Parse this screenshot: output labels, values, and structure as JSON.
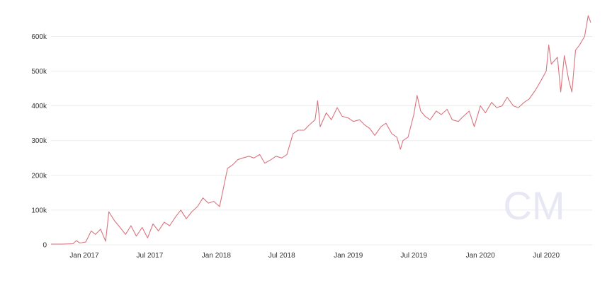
{
  "chart_data": {
    "type": "line",
    "title": "",
    "xlabel": "",
    "ylabel": "",
    "grid": true,
    "legend": "none",
    "xlim": [
      "2016-10-01",
      "2020-11-05"
    ],
    "ylim": [
      0,
      660000
    ],
    "y_ticks": [
      {
        "value": 0,
        "label": "0"
      },
      {
        "value": 100000,
        "label": "100k"
      },
      {
        "value": 200000,
        "label": "200k"
      },
      {
        "value": 300000,
        "label": "300k"
      },
      {
        "value": 400000,
        "label": "400k"
      },
      {
        "value": 500000,
        "label": "500k"
      },
      {
        "value": 600000,
        "label": "600k"
      }
    ],
    "x_ticks": [
      {
        "date": "2017-01-01",
        "label": "Jan 2017"
      },
      {
        "date": "2017-07-01",
        "label": "Jul 2017"
      },
      {
        "date": "2018-01-01",
        "label": "Jan 2018"
      },
      {
        "date": "2018-07-01",
        "label": "Jul 2018"
      },
      {
        "date": "2019-01-01",
        "label": "Jan 2019"
      },
      {
        "date": "2019-07-01",
        "label": "Jul 2019"
      },
      {
        "date": "2020-01-01",
        "label": "Jan 2020"
      },
      {
        "date": "2020-07-01",
        "label": "Jul 2020"
      }
    ],
    "series": [
      {
        "color": "#d9747e",
        "points": [
          [
            "2016-10-01",
            2000
          ],
          [
            "2016-11-01",
            2000
          ],
          [
            "2016-12-01",
            3000
          ],
          [
            "2016-12-10",
            12000
          ],
          [
            "2016-12-20",
            5000
          ],
          [
            "2017-01-05",
            8000
          ],
          [
            "2017-01-20",
            40000
          ],
          [
            "2017-02-01",
            30000
          ],
          [
            "2017-02-15",
            45000
          ],
          [
            "2017-03-01",
            10000
          ],
          [
            "2017-03-10",
            95000
          ],
          [
            "2017-03-25",
            70000
          ],
          [
            "2017-04-10",
            50000
          ],
          [
            "2017-04-25",
            30000
          ],
          [
            "2017-05-10",
            55000
          ],
          [
            "2017-05-25",
            25000
          ],
          [
            "2017-06-10",
            50000
          ],
          [
            "2017-06-25",
            20000
          ],
          [
            "2017-07-10",
            60000
          ],
          [
            "2017-07-25",
            40000
          ],
          [
            "2017-08-10",
            65000
          ],
          [
            "2017-08-25",
            55000
          ],
          [
            "2017-09-10",
            80000
          ],
          [
            "2017-09-25",
            100000
          ],
          [
            "2017-10-10",
            75000
          ],
          [
            "2017-10-25",
            95000
          ],
          [
            "2017-11-10",
            110000
          ],
          [
            "2017-11-25",
            135000
          ],
          [
            "2017-12-10",
            120000
          ],
          [
            "2017-12-25",
            125000
          ],
          [
            "2018-01-10",
            110000
          ],
          [
            "2018-01-20",
            160000
          ],
          [
            "2018-02-01",
            220000
          ],
          [
            "2018-02-15",
            230000
          ],
          [
            "2018-03-01",
            245000
          ],
          [
            "2018-03-15",
            250000
          ],
          [
            "2018-04-01",
            255000
          ],
          [
            "2018-04-15",
            250000
          ],
          [
            "2018-05-01",
            260000
          ],
          [
            "2018-05-15",
            235000
          ],
          [
            "2018-06-01",
            245000
          ],
          [
            "2018-06-15",
            255000
          ],
          [
            "2018-07-01",
            250000
          ],
          [
            "2018-07-15",
            260000
          ],
          [
            "2018-08-01",
            320000
          ],
          [
            "2018-08-15",
            330000
          ],
          [
            "2018-09-01",
            330000
          ],
          [
            "2018-09-15",
            345000
          ],
          [
            "2018-10-01",
            360000
          ],
          [
            "2018-10-08",
            415000
          ],
          [
            "2018-10-15",
            340000
          ],
          [
            "2018-11-01",
            380000
          ],
          [
            "2018-11-15",
            360000
          ],
          [
            "2018-12-01",
            395000
          ],
          [
            "2018-12-15",
            370000
          ],
          [
            "2019-01-01",
            365000
          ],
          [
            "2019-01-15",
            355000
          ],
          [
            "2019-02-01",
            360000
          ],
          [
            "2019-02-15",
            345000
          ],
          [
            "2019-03-01",
            335000
          ],
          [
            "2019-03-15",
            315000
          ],
          [
            "2019-04-01",
            340000
          ],
          [
            "2019-04-15",
            350000
          ],
          [
            "2019-05-01",
            320000
          ],
          [
            "2019-05-15",
            310000
          ],
          [
            "2019-05-25",
            275000
          ],
          [
            "2019-06-01",
            300000
          ],
          [
            "2019-06-15",
            310000
          ],
          [
            "2019-07-01",
            375000
          ],
          [
            "2019-07-10",
            430000
          ],
          [
            "2019-07-20",
            385000
          ],
          [
            "2019-08-01",
            370000
          ],
          [
            "2019-08-15",
            360000
          ],
          [
            "2019-09-01",
            385000
          ],
          [
            "2019-09-15",
            375000
          ],
          [
            "2019-10-01",
            390000
          ],
          [
            "2019-10-15",
            360000
          ],
          [
            "2019-11-01",
            355000
          ],
          [
            "2019-11-15",
            370000
          ],
          [
            "2019-12-01",
            385000
          ],
          [
            "2019-12-15",
            340000
          ],
          [
            "2020-01-01",
            400000
          ],
          [
            "2020-01-15",
            380000
          ],
          [
            "2020-02-01",
            410000
          ],
          [
            "2020-02-15",
            395000
          ],
          [
            "2020-03-01",
            400000
          ],
          [
            "2020-03-15",
            425000
          ],
          [
            "2020-04-01",
            400000
          ],
          [
            "2020-04-15",
            395000
          ],
          [
            "2020-05-01",
            410000
          ],
          [
            "2020-05-15",
            420000
          ],
          [
            "2020-06-01",
            445000
          ],
          [
            "2020-06-15",
            470000
          ],
          [
            "2020-07-01",
            500000
          ],
          [
            "2020-07-08",
            575000
          ],
          [
            "2020-07-15",
            520000
          ],
          [
            "2020-08-01",
            540000
          ],
          [
            "2020-08-10",
            440000
          ],
          [
            "2020-08-20",
            545000
          ],
          [
            "2020-09-01",
            475000
          ],
          [
            "2020-09-10",
            440000
          ],
          [
            "2020-09-20",
            560000
          ],
          [
            "2020-10-01",
            575000
          ],
          [
            "2020-10-15",
            600000
          ],
          [
            "2020-10-25",
            660000
          ],
          [
            "2020-11-01",
            640000
          ]
        ]
      }
    ]
  },
  "watermark": {
    "text": "CM",
    "color": "#e7e8f4"
  }
}
